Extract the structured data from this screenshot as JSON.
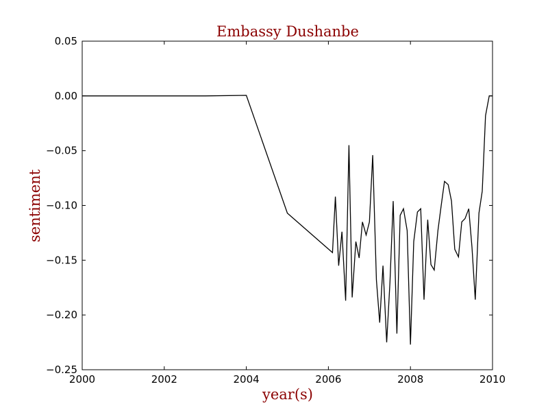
{
  "chart_data": {
    "type": "line",
    "title": "Embassy Dushanbe",
    "xlabel": "year(s)",
    "ylabel": "sentiment",
    "xlim": [
      2000,
      2010
    ],
    "ylim": [
      -0.25,
      0.05
    ],
    "xticks": [
      2000,
      2002,
      2004,
      2006,
      2008,
      2010
    ],
    "yticks": [
      0.05,
      0.0,
      -0.05,
      -0.1,
      -0.15,
      -0.2,
      -0.25
    ],
    "xtick_labels": [
      "2000",
      "2002",
      "2004",
      "2006",
      "2008",
      "2010"
    ],
    "ytick_labels": [
      "0.05",
      "0.00",
      "−0.05",
      "−0.10",
      "−0.15",
      "−0.20",
      "−0.25"
    ],
    "grid": false,
    "colors": {
      "line": "#000000",
      "title": "#8b0000",
      "axis_label": "#8b0000"
    },
    "series": [
      {
        "x": [
          2000.0,
          2003.0,
          2004.0,
          2005.0,
          2006.1,
          2006.17,
          2006.25,
          2006.33,
          2006.42,
          2006.5,
          2006.58,
          2006.67,
          2006.75,
          2006.83,
          2006.92,
          2007.0,
          2007.08,
          2007.17,
          2007.25,
          2007.33,
          2007.42,
          2007.5,
          2007.58,
          2007.67,
          2007.75,
          2007.83,
          2007.92,
          2008.0,
          2008.08,
          2008.17,
          2008.25,
          2008.33,
          2008.42,
          2008.5,
          2008.58,
          2008.67,
          2008.75,
          2008.83,
          2008.92,
          2009.0,
          2009.08,
          2009.17,
          2009.25,
          2009.33,
          2009.42,
          2009.5,
          2009.58,
          2009.67,
          2009.75,
          2009.83,
          2009.92,
          2010.0
        ],
        "y": [
          0.0,
          0.0,
          0.0005,
          -0.107,
          -0.143,
          -0.092,
          -0.155,
          -0.124,
          -0.187,
          -0.045,
          -0.184,
          -0.133,
          -0.148,
          -0.115,
          -0.127,
          -0.115,
          -0.054,
          -0.168,
          -0.207,
          -0.155,
          -0.225,
          -0.17,
          -0.096,
          -0.217,
          -0.109,
          -0.103,
          -0.123,
          -0.227,
          -0.133,
          -0.106,
          -0.103,
          -0.186,
          -0.113,
          -0.154,
          -0.159,
          -0.123,
          -0.1,
          -0.078,
          -0.081,
          -0.096,
          -0.14,
          -0.147,
          -0.115,
          -0.112,
          -0.103,
          -0.138,
          -0.186,
          -0.107,
          -0.087,
          -0.018,
          0.0,
          0.0
        ]
      }
    ]
  }
}
